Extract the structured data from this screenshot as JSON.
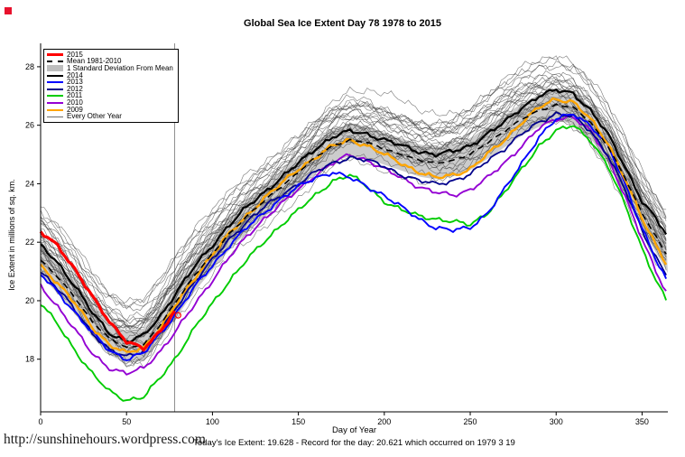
{
  "page": {
    "title": "Global Sea Ice Extent Day 78 1978 to 2015",
    "url_text": "http://sunshinehours.wordpress.com",
    "caption": "Today's Ice Extent: 19.628  - Record for the day: 20.621 which occurred on 1979 3 19"
  },
  "chart_data": {
    "type": "line",
    "title": "Global Sea Ice Extent Day 78 1978 to 2015",
    "xlabel": "Day of Year",
    "ylabel": "Ice Extent in millions of sq. km.",
    "xlim": [
      0,
      365
    ],
    "ylim": [
      16.2,
      28.8
    ],
    "xticks": [
      0,
      50,
      100,
      150,
      200,
      250,
      300,
      350
    ],
    "yticks": [
      18,
      20,
      22,
      24,
      26,
      28
    ],
    "grid": false,
    "legend_position": "top-left",
    "today_line_x": 78,
    "today_extent": 19.628,
    "record_for_day": 20.621,
    "record_date": "1979 3 19",
    "today_marker": {
      "x": 80,
      "y": 19.5,
      "color": "#ff0000"
    },
    "days": [
      0,
      10,
      20,
      30,
      40,
      50,
      60,
      70,
      78,
      90,
      100,
      110,
      120,
      130,
      140,
      150,
      160,
      170,
      180,
      190,
      200,
      210,
      220,
      230,
      240,
      250,
      260,
      270,
      280,
      290,
      300,
      310,
      320,
      330,
      340,
      350,
      358,
      365
    ],
    "mean": [
      21.4,
      20.8,
      20.1,
      19.3,
      18.7,
      18.4,
      18.5,
      19.2,
      19.9,
      20.9,
      21.6,
      22.3,
      22.9,
      23.4,
      23.9,
      24.4,
      24.9,
      25.3,
      25.5,
      25.4,
      25.2,
      25.0,
      24.8,
      24.7,
      24.8,
      25.0,
      25.4,
      25.8,
      26.2,
      26.5,
      26.7,
      26.6,
      26.1,
      25.3,
      24.2,
      23.0,
      22.2,
      21.5
    ],
    "std": 0.55,
    "band_color": "#c6c6c6",
    "mean_color": "#000000",
    "series": [
      {
        "name": "2015",
        "color": "#ff0000",
        "width": 3.2,
        "days": [
          0,
          10,
          20,
          30,
          40,
          50,
          60,
          70,
          78
        ],
        "values": [
          22.35,
          21.9,
          21.05,
          20.15,
          19.3,
          18.6,
          18.35,
          19.0,
          19.628
        ]
      },
      {
        "name": "2014",
        "color": "#000000",
        "width": 2.2,
        "values": [
          21.9,
          21.3,
          20.5,
          19.6,
          18.9,
          18.6,
          18.8,
          19.5,
          20.2,
          21.2,
          21.9,
          22.6,
          23.2,
          23.7,
          24.2,
          24.7,
          25.2,
          25.6,
          25.8,
          25.7,
          25.5,
          25.3,
          25.1,
          25.0,
          25.1,
          25.3,
          25.7,
          26.1,
          26.6,
          27.0,
          27.2,
          27.1,
          26.5,
          25.7,
          24.6,
          23.4,
          22.8,
          22.2
        ]
      },
      {
        "name": "2013",
        "color": "#0000ff",
        "width": 1.9,
        "values": [
          20.9,
          20.3,
          19.6,
          18.9,
          18.3,
          18.0,
          18.2,
          18.9,
          19.5,
          20.5,
          21.2,
          21.9,
          22.5,
          23.0,
          23.5,
          23.9,
          24.2,
          24.4,
          24.2,
          23.9,
          23.6,
          23.2,
          22.8,
          22.5,
          22.4,
          22.5,
          23.0,
          23.8,
          24.7,
          25.6,
          26.2,
          26.4,
          26.0,
          25.3,
          24.0,
          22.5,
          21.4,
          20.6
        ]
      },
      {
        "name": "2012",
        "color": "#00008b",
        "width": 1.8,
        "values": [
          21.0,
          20.4,
          19.7,
          18.9,
          18.3,
          18.1,
          18.3,
          19.0,
          19.7,
          20.7,
          21.4,
          22.1,
          22.7,
          23.2,
          23.6,
          24.0,
          24.4,
          24.7,
          24.9,
          24.8,
          24.6,
          24.3,
          24.1,
          24.0,
          24.1,
          24.3,
          24.8,
          25.2,
          25.7,
          26.1,
          26.4,
          26.3,
          25.8,
          25.0,
          23.8,
          22.4,
          21.5,
          20.8
        ]
      },
      {
        "name": "2011",
        "color": "#00cc00",
        "width": 1.9,
        "values": [
          19.9,
          19.2,
          18.3,
          17.5,
          16.9,
          16.6,
          16.7,
          17.4,
          18.0,
          19.1,
          19.9,
          20.7,
          21.4,
          22.0,
          22.6,
          23.1,
          23.6,
          24.1,
          24.3,
          23.9,
          23.4,
          23.1,
          22.9,
          22.8,
          22.7,
          22.6,
          23.0,
          23.7,
          24.5,
          25.3,
          25.8,
          26.0,
          25.5,
          24.6,
          23.3,
          21.8,
          20.7,
          19.9
        ]
      },
      {
        "name": "2010",
        "color": "#9400d3",
        "width": 1.9,
        "values": [
          20.5,
          19.8,
          19.0,
          18.2,
          17.7,
          17.5,
          17.7,
          18.3,
          18.9,
          19.9,
          20.7,
          21.5,
          22.2,
          22.8,
          23.3,
          23.8,
          24.3,
          24.7,
          25.0,
          24.8,
          24.5,
          24.2,
          23.9,
          23.7,
          23.6,
          23.8,
          24.2,
          24.7,
          25.3,
          25.9,
          26.2,
          26.3,
          25.8,
          24.9,
          23.6,
          22.1,
          21.0,
          20.2
        ]
      },
      {
        "name": "2009",
        "color": "#ffa500",
        "width": 2.4,
        "values": [
          21.2,
          20.6,
          19.9,
          19.1,
          18.5,
          18.2,
          18.4,
          19.1,
          19.8,
          20.8,
          21.6,
          22.3,
          22.9,
          23.5,
          24.0,
          24.5,
          24.9,
          25.3,
          25.5,
          25.3,
          25.0,
          24.7,
          24.4,
          24.2,
          24.3,
          24.5,
          25.0,
          25.5,
          26.1,
          26.6,
          26.9,
          26.8,
          26.2,
          25.4,
          24.2,
          22.8,
          21.9,
          21.2
        ]
      }
    ],
    "other_years": {
      "label": "Every Other Year",
      "color": "#454545",
      "width": 0.6,
      "params_fields": [
        "base_offset",
        "amp1",
        "phase1",
        "amp2",
        "phase2"
      ],
      "params": [
        [
          1.35,
          0.3,
          0.5,
          0.15,
          1.2
        ],
        [
          1.5,
          0.25,
          2.1,
          0.18,
          0.4
        ],
        [
          1.25,
          0.28,
          1.0,
          0.12,
          2.2
        ],
        [
          1.1,
          0.22,
          2.8,
          0.15,
          1.5
        ],
        [
          1.3,
          0.2,
          0.2,
          0.1,
          3.0
        ],
        [
          1.05,
          0.25,
          1.7,
          0.14,
          0.8
        ],
        [
          0.95,
          0.3,
          2.4,
          0.12,
          1.9
        ],
        [
          0.85,
          0.22,
          0.9,
          0.16,
          2.6
        ],
        [
          1.0,
          0.18,
          3.1,
          0.1,
          0.3
        ],
        [
          0.9,
          0.26,
          1.4,
          0.13,
          1.1
        ],
        [
          0.75,
          0.21,
          2.0,
          0.15,
          2.9
        ],
        [
          0.55,
          0.24,
          0.6,
          0.11,
          1.6
        ],
        [
          0.45,
          0.27,
          2.7,
          0.14,
          0.7
        ],
        [
          0.5,
          0.19,
          1.2,
          0.12,
          2.3
        ],
        [
          0.65,
          0.23,
          3.0,
          0.1,
          1.0
        ],
        [
          0.55,
          0.25,
          0.4,
          0.13,
          2.0
        ],
        [
          0.6,
          0.2,
          1.9,
          0.15,
          0.5
        ],
        [
          0.25,
          0.26,
          2.5,
          0.11,
          1.8
        ],
        [
          0.4,
          0.22,
          0.8,
          0.14,
          2.7
        ],
        [
          0.15,
          0.24,
          2.2,
          0.12,
          0.9
        ],
        [
          0.05,
          0.21,
          1.1,
          0.15,
          2.4
        ],
        [
          0.2,
          0.25,
          2.9,
          0.1,
          1.3
        ],
        [
          0.1,
          0.23,
          0.3,
          0.13,
          2.1
        ],
        [
          0.0,
          0.2,
          1.6,
          0.12,
          0.6
        ],
        [
          -0.2,
          0.24,
          2.6,
          0.14,
          1.7
        ],
        [
          0.05,
          0.22,
          0.7,
          0.11,
          2.8
        ],
        [
          -0.1,
          0.25,
          1.8,
          0.13,
          0.2
        ],
        [
          -0.3,
          0.21,
          2.3,
          0.15,
          1.4
        ],
        [
          -0.5,
          0.23,
          0.1,
          0.12,
          2.5
        ],
        [
          -0.6,
          0.26,
          1.5,
          0.1,
          1.0
        ],
        [
          -0.15,
          0.22,
          2.8,
          0.14,
          0.4
        ]
      ]
    },
    "legend": {
      "items": [
        {
          "label": "2015",
          "color": "#ff0000",
          "style": "solid",
          "width": 3
        },
        {
          "label": "Mean 1981-2010",
          "color": "#000000",
          "style": "dashed",
          "width": 2
        },
        {
          "label": "1 Standard Deviation From Mean",
          "color": "#bebebe",
          "style": "box",
          "width": 8
        },
        {
          "label": "2014",
          "color": "#000000",
          "style": "solid",
          "width": 2
        },
        {
          "label": "2013",
          "color": "#0000ff",
          "style": "solid",
          "width": 2
        },
        {
          "label": "2012",
          "color": "#00008b",
          "style": "solid",
          "width": 2
        },
        {
          "label": "2011",
          "color": "#00cc00",
          "style": "solid",
          "width": 2
        },
        {
          "label": "2010",
          "color": "#9400d3",
          "style": "solid",
          "width": 2
        },
        {
          "label": "2009",
          "color": "#ffa500",
          "style": "solid",
          "width": 2
        },
        {
          "label": "Every Other Year",
          "color": "#6e6e6e",
          "style": "solid",
          "width": 1
        }
      ]
    }
  }
}
